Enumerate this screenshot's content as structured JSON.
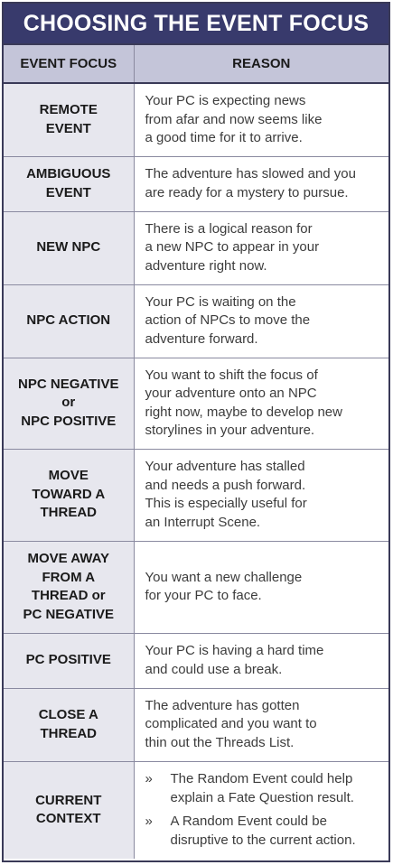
{
  "title": "CHOOSING THE EVENT FOCUS",
  "headers": {
    "focus": "EVENT FOCUS",
    "reason": "REASON"
  },
  "rows": [
    {
      "focus": [
        "REMOTE",
        "EVENT"
      ],
      "reason": "Your PC is expecting news\nfrom afar and now seems like\na good time for it to arrive."
    },
    {
      "focus": [
        "AMBIGUOUS",
        "EVENT"
      ],
      "reason": "The adventure has slowed and you\nare ready for a mystery to pursue."
    },
    {
      "focus": [
        "NEW NPC"
      ],
      "reason": "There is a logical reason for\na new NPC to appear in your\nadventure right now."
    },
    {
      "focus": [
        "NPC ACTION"
      ],
      "reason": "Your PC is waiting on the\naction of NPCs to move the\nadventure forward."
    },
    {
      "focus": [
        "NPC NEGATIVE",
        "or",
        "NPC POSITIVE"
      ],
      "reason": "You want to shift the focus of\nyour adventure onto an NPC\nright now, maybe to develop new\nstorylines in your adventure."
    },
    {
      "focus": [
        "MOVE",
        "TOWARD A",
        "THREAD"
      ],
      "reason": "Your adventure has stalled\nand needs a push forward.\nThis is especially useful for\nan Interrupt Scene."
    },
    {
      "focus": [
        "MOVE AWAY",
        "FROM A",
        "THREAD or",
        "PC NEGATIVE"
      ],
      "reason": "You want a new challenge\nfor your PC to face."
    },
    {
      "focus": [
        "PC POSITIVE"
      ],
      "reason": "Your PC is having a hard time\nand could use a break."
    },
    {
      "focus": [
        "CLOSE A",
        "THREAD"
      ],
      "reason": "The adventure has gotten\ncomplicated and you want to\nthin out the Threads List."
    },
    {
      "focus": [
        "CURRENT",
        "CONTEXT"
      ],
      "bullet_mark": "»",
      "bullets": [
        "The Random Event could help\nexplain a Fate Question result.",
        "A Random Event could be\ndisruptive to the current action."
      ]
    }
  ]
}
